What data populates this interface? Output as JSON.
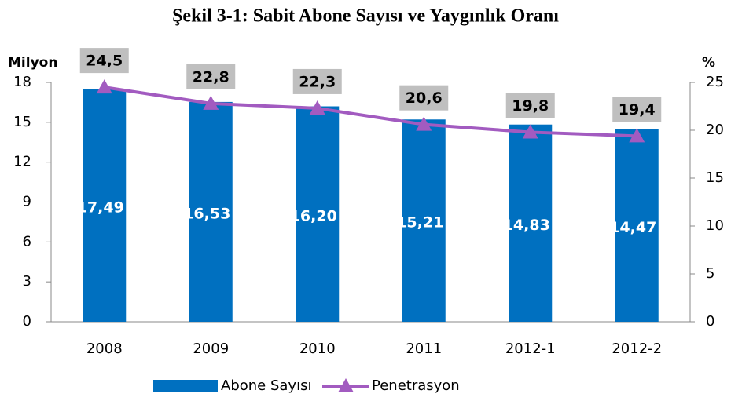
{
  "chart_data": {
    "type": "bar",
    "title": "Şekil 3-1: Sabit Abone Sayısı ve Yaygınlık Oranı",
    "y_label": "Milyon",
    "y2_label": "%",
    "categories": [
      "2008",
      "2009",
      "2010",
      "2011",
      "2012-1",
      "2012-2"
    ],
    "series": [
      {
        "name": "Abone Sayısı",
        "type": "bar",
        "color": "#0070c0",
        "values": [
          17.49,
          16.53,
          16.2,
          15.21,
          14.83,
          14.47
        ],
        "value_labels": [
          "17,49",
          "16,53",
          "16,20",
          "15,21",
          "14,83",
          "14,47"
        ]
      },
      {
        "name": "Penetrasyon",
        "type": "line",
        "axis": "y2",
        "color": "#a25bc0",
        "values": [
          24.5,
          22.8,
          22.3,
          20.6,
          19.8,
          19.4
        ],
        "value_labels": [
          "24,5",
          "22,8",
          "22,3",
          "20,6",
          "19,8",
          "19,4"
        ]
      }
    ],
    "ylim": [
      0,
      18
    ],
    "yticks": [
      0,
      3,
      6,
      9,
      12,
      15,
      18
    ],
    "y2lim": [
      0,
      25
    ],
    "y2ticks": [
      0,
      5,
      10,
      15,
      20,
      25
    ],
    "grid": false,
    "legend": "bottom"
  }
}
